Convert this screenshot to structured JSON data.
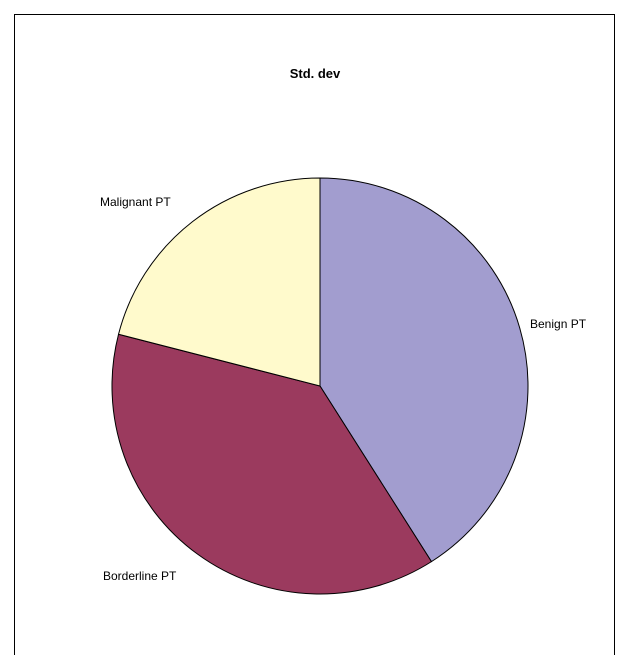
{
  "chart_data": {
    "type": "pie",
    "title": "Std. dev",
    "categories": [
      "Benign PT",
      "Borderline PT",
      "Malignant PT"
    ],
    "values": [
      41,
      38,
      21
    ],
    "colors": [
      "#A29DCF",
      "#9B3A5E",
      "#FFFACC"
    ],
    "start_angle_deg": 0,
    "direction": "clockwise",
    "legend": "none",
    "slice_labels": "outside"
  }
}
